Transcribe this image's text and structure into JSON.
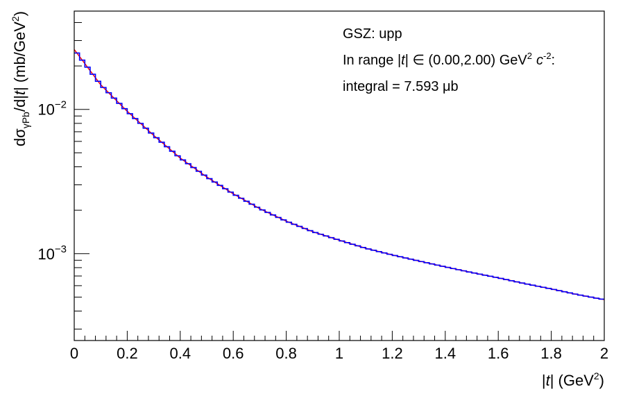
{
  "chart_data": {
    "type": "line",
    "style": "step-histogram",
    "xlabel_html": "|t| (GeV²)",
    "xlabel_parts": {
      "pre": "|",
      "var": "t",
      "mid": "| (GeV",
      "sup": "2",
      "post": ")"
    },
    "ylabel_parts": {
      "d": "dσ",
      "sub": "γPb",
      "mid": "/d|",
      "var": "t",
      "mid2": "| (mb/GeV",
      "sup": "2",
      "post": ")"
    },
    "xlim": [
      0,
      2
    ],
    "ylim": [
      0.00025,
      0.048
    ],
    "y_scale": "log",
    "x_ticks": [
      "0",
      "0.2",
      "0.4",
      "0.6",
      "0.8",
      "1",
      "1.2",
      "1.4",
      "1.6",
      "1.8",
      "2"
    ],
    "y_ticks": [
      {
        "value": 0.01,
        "base": "10",
        "exp": "−2"
      },
      {
        "value": 0.001,
        "base": "10",
        "exp": "−3"
      }
    ],
    "annotations": {
      "line1": "GSZ: upp",
      "line2_pre": "In range |",
      "line2_var": "t",
      "line2_mid": "| ∈ (0.00,2.00) GeV",
      "line2_sup1": "2",
      "line2_c": "c",
      "line2_sup2": "-2",
      "line2_post": ":",
      "line3": "integral = 7.593 μb"
    },
    "series": [
      {
        "color_hist": "#0000ff",
        "color_curve": "#ff0000",
        "bin_width": 0.02,
        "x": [
          0.0,
          0.1,
          0.2,
          0.3,
          0.4,
          0.5,
          0.6,
          0.7,
          0.8,
          0.9,
          1.0,
          1.1,
          1.2,
          1.3,
          1.4,
          1.5,
          1.6,
          1.7,
          1.8,
          1.9,
          2.0
        ],
        "y": [
          0.026,
          0.0148,
          0.0097,
          0.0066,
          0.0046,
          0.0034,
          0.0026,
          0.00205,
          0.00168,
          0.00142,
          0.00124,
          0.00109,
          0.00098,
          0.00089,
          0.00081,
          0.00074,
          0.00068,
          0.00062,
          0.00057,
          0.00052,
          0.00048
        ]
      }
    ]
  }
}
